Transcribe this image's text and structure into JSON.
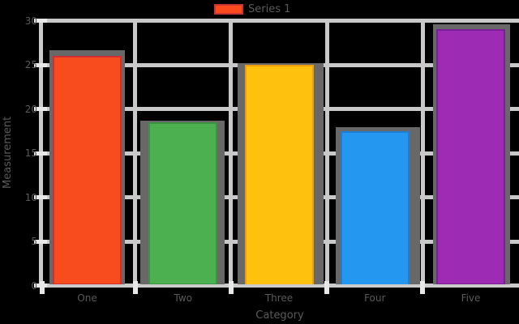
{
  "figure": {
    "background": "#000000",
    "text_color": "#5a5a5a",
    "grid_color": "#c9c9c9",
    "axis_color": "#cbcbcb",
    "tick_mark_color": "#e8e8e8",
    "shadow_color": "#686868"
  },
  "chart_data": {
    "type": "bar",
    "title": "",
    "xlabel": "Category",
    "ylabel": "Measurement",
    "categories": [
      "One",
      "Two",
      "Three",
      "Four",
      "Five"
    ],
    "values": [
      26,
      18.5,
      25,
      17.5,
      29
    ],
    "bar_colors": [
      "#f84b1e",
      "#4caf50",
      "#fec10d",
      "#2497f0",
      "#9d2bb4"
    ],
    "bar_edge_colors": [
      "#d32f2f",
      "#3b9441",
      "#ee9d0c",
      "#1d7fd4",
      "#7a1f96"
    ],
    "ylim": [
      0,
      30
    ],
    "yticks": [
      "0",
      "5",
      "10",
      "15",
      "20",
      "25",
      "30"
    ],
    "grid": "on",
    "legend": {
      "label": "Series 1",
      "swatch_fill": "#fb4a1e",
      "swatch_edge": "#c73535",
      "position": "top-center"
    }
  }
}
